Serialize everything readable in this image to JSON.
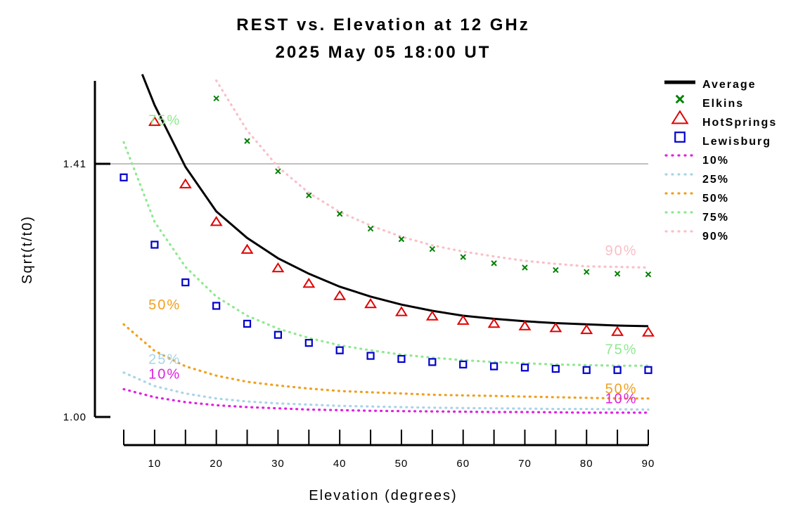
{
  "chart_data": {
    "type": "line",
    "title": "REST vs. Elevation at 12 GHz",
    "subtitle": "2025 May 05 18:00 UT",
    "xlabel": "Elevation (degrees)",
    "ylabel": "Sqrt(t/t0)",
    "xlim": [
      5,
      90
    ],
    "ylim": [
      0.97,
      1.53
    ],
    "x_ticks": [
      10,
      20,
      30,
      40,
      50,
      60,
      70,
      80,
      90
    ],
    "x_tick_labels": [
      "10",
      "20",
      "30",
      "40",
      "50",
      "60",
      "70",
      "80",
      "90"
    ],
    "y_ticks": [
      1.0,
      1.41
    ],
    "y_tick_labels": [
      "1.00",
      "1.41"
    ],
    "reference_line": {
      "y": 1.41,
      "color": "#c0c0c0"
    },
    "legend_position": "right",
    "series": [
      {
        "name": "Average",
        "style": "line",
        "color": "#000000",
        "x": [
          8,
          10,
          15,
          20,
          25,
          30,
          35,
          40,
          45,
          50,
          55,
          60,
          65,
          70,
          75,
          80,
          85,
          90
        ],
        "y": [
          1.555,
          1.505,
          1.405,
          1.333,
          1.29,
          1.257,
          1.232,
          1.211,
          1.195,
          1.182,
          1.172,
          1.164,
          1.159,
          1.155,
          1.152,
          1.15,
          1.148,
          1.147
        ]
      },
      {
        "name": "Elkins",
        "style": "cross",
        "color": "#008000",
        "x": [
          20,
          25,
          30,
          35,
          40,
          45,
          50,
          55,
          60,
          65,
          70,
          75,
          80,
          85,
          90
        ],
        "y": [
          1.516,
          1.447,
          1.398,
          1.359,
          1.329,
          1.305,
          1.288,
          1.272,
          1.259,
          1.249,
          1.242,
          1.238,
          1.235,
          1.232,
          1.231
        ]
      },
      {
        "name": "HotSprings",
        "style": "triangle",
        "color": "#e00000",
        "x": [
          10,
          15,
          20,
          25,
          30,
          35,
          40,
          45,
          50,
          55,
          60,
          65,
          70,
          75,
          80,
          85,
          90
        ],
        "y": [
          1.478,
          1.377,
          1.316,
          1.271,
          1.241,
          1.216,
          1.196,
          1.183,
          1.17,
          1.163,
          1.156,
          1.151,
          1.147,
          1.144,
          1.141,
          1.138,
          1.137
        ]
      },
      {
        "name": "Lewisburg",
        "style": "square",
        "color": "#0000cc",
        "x": [
          5,
          10,
          15,
          20,
          25,
          30,
          35,
          40,
          45,
          50,
          55,
          60,
          65,
          70,
          75,
          80,
          85,
          90
        ],
        "y": [
          1.388,
          1.279,
          1.218,
          1.18,
          1.151,
          1.133,
          1.12,
          1.108,
          1.099,
          1.094,
          1.089,
          1.085,
          1.082,
          1.08,
          1.078,
          1.076,
          1.076,
          1.076
        ]
      },
      {
        "name": "10%",
        "style": "dotted",
        "color": "#e020e0",
        "label": "10%",
        "x": [
          5,
          10,
          15,
          20,
          25,
          30,
          35,
          40,
          45,
          50,
          55,
          60,
          65,
          70,
          75,
          80,
          85,
          90
        ],
        "y": [
          1.045,
          1.032,
          1.024,
          1.019,
          1.016,
          1.014,
          1.012,
          1.011,
          1.01,
          1.0095,
          1.009,
          1.0085,
          1.008,
          1.008,
          1.0075,
          1.007,
          1.007,
          1.007
        ]
      },
      {
        "name": "25%",
        "style": "dotted",
        "color": "#a8d4e8",
        "label": "25%",
        "x": [
          5,
          10,
          15,
          20,
          25,
          30,
          35,
          40,
          45,
          50,
          55,
          60,
          65,
          70,
          75,
          80,
          85,
          90
        ],
        "y": [
          1.072,
          1.05,
          1.038,
          1.03,
          1.025,
          1.022,
          1.02,
          1.018,
          1.017,
          1.016,
          1.015,
          1.0145,
          1.014,
          1.0135,
          1.013,
          1.013,
          1.0125,
          1.012
        ]
      },
      {
        "name": "50%",
        "style": "dotted",
        "color": "#f0a020",
        "label": "50%",
        "x": [
          5,
          10,
          15,
          20,
          25,
          30,
          35,
          40,
          45,
          50,
          55,
          60,
          65,
          70,
          75,
          80,
          85,
          90
        ],
        "y": [
          1.15,
          1.107,
          1.082,
          1.067,
          1.057,
          1.051,
          1.046,
          1.042,
          1.04,
          1.038,
          1.036,
          1.035,
          1.034,
          1.033,
          1.032,
          1.031,
          1.03,
          1.03
        ]
      },
      {
        "name": "75%",
        "style": "dotted",
        "color": "#90e890",
        "label": "75%",
        "x": [
          5,
          10,
          15,
          20,
          25,
          30,
          35,
          40,
          45,
          50,
          55,
          60,
          65,
          70,
          75,
          80,
          85,
          90
        ],
        "y": [
          1.445,
          1.316,
          1.243,
          1.195,
          1.164,
          1.143,
          1.128,
          1.116,
          1.108,
          1.101,
          1.096,
          1.092,
          1.089,
          1.087,
          1.085,
          1.084,
          1.083,
          1.083
        ]
      },
      {
        "name": "90%",
        "style": "dotted",
        "color": "#f8c0c8",
        "label": "90%",
        "x": [
          20,
          25,
          30,
          35,
          40,
          45,
          50,
          55,
          60,
          65,
          70,
          75,
          80,
          85,
          90
        ],
        "y": [
          1.545,
          1.464,
          1.405,
          1.363,
          1.332,
          1.31,
          1.292,
          1.278,
          1.268,
          1.26,
          1.253,
          1.248,
          1.244,
          1.243,
          1.242
        ]
      }
    ],
    "curve_labels": [
      {
        "text": "75%",
        "series": "75%",
        "x": 9,
        "y": 1.473
      },
      {
        "text": "50%",
        "series": "50%",
        "x": 9,
        "y": 1.174
      },
      {
        "text": "25%",
        "series": "25%",
        "x": 9,
        "y": 1.086
      },
      {
        "text": "10%",
        "series": "10%",
        "x": 9,
        "y": 1.062
      },
      {
        "text": "90%",
        "series": "90%",
        "x": 83,
        "y": 1.262
      },
      {
        "text": "75%",
        "series": "75%",
        "x": 83,
        "y": 1.102
      },
      {
        "text": "50%",
        "series": "50%",
        "x": 83,
        "y": 1.038
      },
      {
        "text": "10%",
        "series": "10%",
        "x": 83,
        "y": 1.022
      }
    ]
  }
}
